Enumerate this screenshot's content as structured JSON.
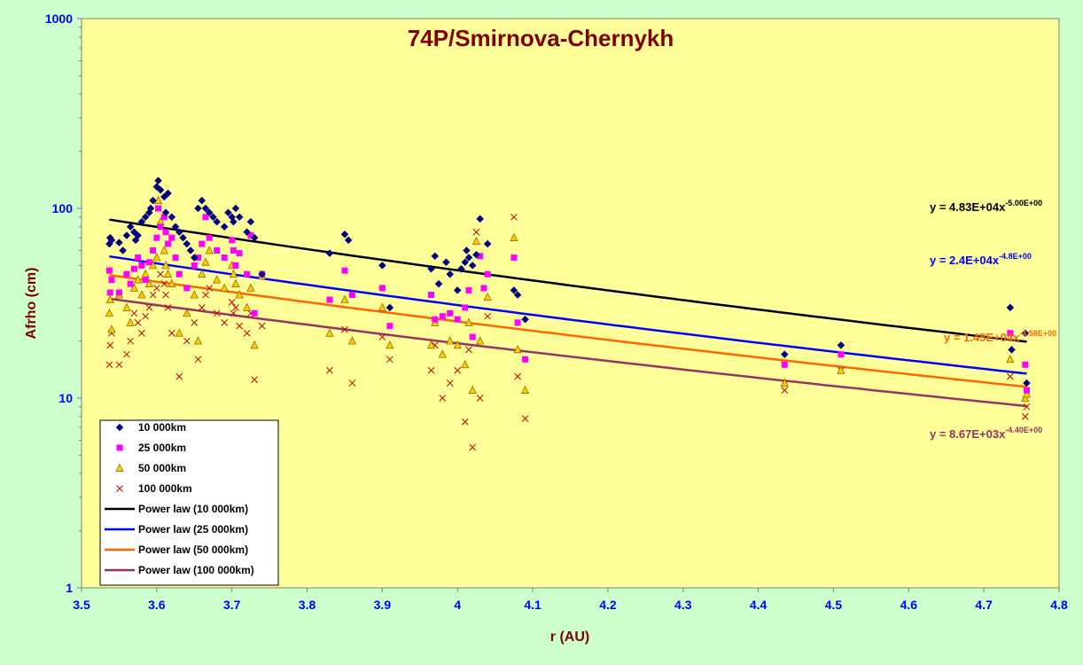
{
  "chart_data": {
    "type": "scatter",
    "title": "74P/Smirnova-Chernykh",
    "xlabel": "r (AU)",
    "ylabel": "Afrho (cm)",
    "xlim": [
      3.5,
      4.8
    ],
    "ylim": [
      1,
      1000
    ],
    "yscale": "log",
    "xticks": [
      "3.5",
      "3.6",
      "3.7",
      "3.8",
      "3.9",
      "4",
      "4.1",
      "4.2",
      "4.3",
      "4.4",
      "4.5",
      "4.6",
      "4.7",
      "4.8"
    ],
    "yticks": [
      "1",
      "10",
      "100",
      "1000"
    ],
    "grid": false,
    "legend_position": "bottom-left",
    "colors": {
      "plot_bg": "#FFFF99",
      "outer_bg": "#CCFFCC",
      "s10000": "#000080",
      "s25000": "#FF00FF",
      "s50000": "#FFCC00",
      "s100000": "#C00000",
      "fit10000": "#000000",
      "fit25000": "#0000FF",
      "fit50000": "#FF6600",
      "fit100000": "#993366"
    },
    "series": [
      {
        "name": "10 000km",
        "marker": "diamond",
        "points": [
          [
            3.537,
            65
          ],
          [
            3.538,
            70
          ],
          [
            3.54,
            68
          ],
          [
            3.55,
            66
          ],
          [
            3.555,
            60
          ],
          [
            3.56,
            72
          ],
          [
            3.565,
            80
          ],
          [
            3.57,
            75
          ],
          [
            3.572,
            68
          ],
          [
            3.575,
            72
          ],
          [
            3.58,
            85
          ],
          [
            3.585,
            90
          ],
          [
            3.59,
            95
          ],
          [
            3.592,
            100
          ],
          [
            3.595,
            110
          ],
          [
            3.6,
            130
          ],
          [
            3.602,
            140
          ],
          [
            3.605,
            125
          ],
          [
            3.61,
            115
          ],
          [
            3.612,
            95
          ],
          [
            3.615,
            120
          ],
          [
            3.62,
            90
          ],
          [
            3.625,
            80
          ],
          [
            3.63,
            75
          ],
          [
            3.635,
            70
          ],
          [
            3.64,
            65
          ],
          [
            3.645,
            60
          ],
          [
            3.65,
            55
          ],
          [
            3.655,
            100
          ],
          [
            3.66,
            110
          ],
          [
            3.665,
            100
          ],
          [
            3.67,
            95
          ],
          [
            3.675,
            90
          ],
          [
            3.68,
            85
          ],
          [
            3.69,
            80
          ],
          [
            3.695,
            95
          ],
          [
            3.7,
            90
          ],
          [
            3.702,
            85
          ],
          [
            3.705,
            100
          ],
          [
            3.71,
            90
          ],
          [
            3.72,
            75
          ],
          [
            3.725,
            85
          ],
          [
            3.73,
            70
          ],
          [
            3.74,
            45
          ],
          [
            3.83,
            58
          ],
          [
            3.85,
            73
          ],
          [
            3.855,
            68
          ],
          [
            3.9,
            50
          ],
          [
            3.91,
            30
          ],
          [
            3.965,
            48
          ],
          [
            3.97,
            56
          ],
          [
            3.975,
            40
          ],
          [
            3.985,
            52
          ],
          [
            3.99,
            45
          ],
          [
            4.0,
            37
          ],
          [
            4.005,
            48
          ],
          [
            4.01,
            52
          ],
          [
            4.012,
            60
          ],
          [
            4.015,
            55
          ],
          [
            4.02,
            50
          ],
          [
            4.025,
            57
          ],
          [
            4.03,
            88
          ],
          [
            4.04,
            65
          ],
          [
            4.075,
            37
          ],
          [
            4.08,
            35
          ],
          [
            4.09,
            26
          ],
          [
            4.435,
            17
          ],
          [
            4.51,
            19
          ],
          [
            4.735,
            30
          ],
          [
            4.737,
            18
          ],
          [
            4.755,
            22
          ],
          [
            4.757,
            12
          ]
        ]
      },
      {
        "name": "25 000km",
        "marker": "square",
        "points": [
          [
            3.537,
            47
          ],
          [
            3.538,
            36
          ],
          [
            3.54,
            42
          ],
          [
            3.55,
            36
          ],
          [
            3.56,
            45
          ],
          [
            3.565,
            40
          ],
          [
            3.57,
            48
          ],
          [
            3.575,
            55
          ],
          [
            3.58,
            50
          ],
          [
            3.585,
            42
          ],
          [
            3.59,
            52
          ],
          [
            3.595,
            60
          ],
          [
            3.6,
            70
          ],
          [
            3.602,
            100
          ],
          [
            3.605,
            80
          ],
          [
            3.61,
            90
          ],
          [
            3.612,
            75
          ],
          [
            3.615,
            65
          ],
          [
            3.62,
            70
          ],
          [
            3.625,
            55
          ],
          [
            3.63,
            45
          ],
          [
            3.64,
            38
          ],
          [
            3.65,
            50
          ],
          [
            3.655,
            55
          ],
          [
            3.66,
            65
          ],
          [
            3.665,
            90
          ],
          [
            3.67,
            70
          ],
          [
            3.68,
            60
          ],
          [
            3.69,
            55
          ],
          [
            3.7,
            68
          ],
          [
            3.702,
            60
          ],
          [
            3.705,
            50
          ],
          [
            3.71,
            58
          ],
          [
            3.72,
            45
          ],
          [
            3.725,
            72
          ],
          [
            3.73,
            28
          ],
          [
            3.74,
            45
          ],
          [
            3.83,
            33
          ],
          [
            3.85,
            47
          ],
          [
            3.86,
            35
          ],
          [
            3.9,
            38
          ],
          [
            3.91,
            24
          ],
          [
            3.965,
            35
          ],
          [
            3.97,
            26
          ],
          [
            3.98,
            27
          ],
          [
            3.99,
            28
          ],
          [
            4.0,
            26
          ],
          [
            4.01,
            30
          ],
          [
            4.015,
            37
          ],
          [
            4.02,
            21
          ],
          [
            4.03,
            56
          ],
          [
            4.035,
            38
          ],
          [
            4.04,
            45
          ],
          [
            4.075,
            55
          ],
          [
            4.08,
            25
          ],
          [
            4.09,
            16
          ],
          [
            4.435,
            15
          ],
          [
            4.51,
            17
          ],
          [
            4.735,
            22
          ],
          [
            4.755,
            15
          ],
          [
            4.757,
            11
          ]
        ]
      },
      {
        "name": "50 000km",
        "marker": "triangle",
        "points": [
          [
            3.537,
            28
          ],
          [
            3.538,
            33
          ],
          [
            3.54,
            23
          ],
          [
            3.55,
            35
          ],
          [
            3.56,
            30
          ],
          [
            3.565,
            25
          ],
          [
            3.57,
            38
          ],
          [
            3.575,
            42
          ],
          [
            3.58,
            35
          ],
          [
            3.585,
            45
          ],
          [
            3.59,
            40
          ],
          [
            3.595,
            50
          ],
          [
            3.6,
            55
          ],
          [
            3.602,
            110
          ],
          [
            3.605,
            85
          ],
          [
            3.61,
            60
          ],
          [
            3.612,
            50
          ],
          [
            3.615,
            45
          ],
          [
            3.62,
            40
          ],
          [
            3.63,
            22
          ],
          [
            3.64,
            28
          ],
          [
            3.65,
            35
          ],
          [
            3.655,
            20
          ],
          [
            3.66,
            45
          ],
          [
            3.665,
            52
          ],
          [
            3.67,
            60
          ],
          [
            3.68,
            42
          ],
          [
            3.69,
            38
          ],
          [
            3.7,
            50
          ],
          [
            3.702,
            45
          ],
          [
            3.705,
            40
          ],
          [
            3.71,
            35
          ],
          [
            3.72,
            30
          ],
          [
            3.725,
            38
          ],
          [
            3.73,
            19
          ],
          [
            3.74,
            44
          ],
          [
            3.83,
            22
          ],
          [
            3.85,
            33
          ],
          [
            3.86,
            20
          ],
          [
            3.9,
            30
          ],
          [
            3.91,
            19
          ],
          [
            3.965,
            19
          ],
          [
            3.97,
            25
          ],
          [
            3.98,
            17
          ],
          [
            3.99,
            20
          ],
          [
            4.0,
            19
          ],
          [
            4.01,
            15
          ],
          [
            4.015,
            25
          ],
          [
            4.02,
            11
          ],
          [
            4.025,
            67
          ],
          [
            4.03,
            20
          ],
          [
            4.04,
            34
          ],
          [
            4.075,
            70
          ],
          [
            4.08,
            18
          ],
          [
            4.09,
            11
          ],
          [
            4.435,
            12
          ],
          [
            4.51,
            14
          ],
          [
            4.735,
            16
          ],
          [
            4.755,
            10
          ],
          [
            4.757,
            10.5
          ]
        ]
      },
      {
        "name": "100 000km",
        "marker": "cross",
        "points": [
          [
            3.537,
            15
          ],
          [
            3.538,
            19
          ],
          [
            3.54,
            22
          ],
          [
            3.55,
            15
          ],
          [
            3.56,
            17
          ],
          [
            3.565,
            20
          ],
          [
            3.57,
            28
          ],
          [
            3.575,
            25
          ],
          [
            3.58,
            22
          ],
          [
            3.585,
            27
          ],
          [
            3.59,
            30
          ],
          [
            3.595,
            35
          ],
          [
            3.6,
            38
          ],
          [
            3.602,
            100
          ],
          [
            3.605,
            45
          ],
          [
            3.61,
            40
          ],
          [
            3.612,
            35
          ],
          [
            3.615,
            30
          ],
          [
            3.62,
            22
          ],
          [
            3.63,
            13
          ],
          [
            3.64,
            20
          ],
          [
            3.65,
            25
          ],
          [
            3.655,
            16
          ],
          [
            3.66,
            30
          ],
          [
            3.665,
            35
          ],
          [
            3.67,
            38
          ],
          [
            3.68,
            28
          ],
          [
            3.69,
            25
          ],
          [
            3.7,
            32
          ],
          [
            3.702,
            28
          ],
          [
            3.705,
            30
          ],
          [
            3.71,
            24
          ],
          [
            3.72,
            22
          ],
          [
            3.725,
            28
          ],
          [
            3.73,
            12.5
          ],
          [
            3.74,
            24
          ],
          [
            3.83,
            14
          ],
          [
            3.85,
            23
          ],
          [
            3.86,
            12
          ],
          [
            3.9,
            21
          ],
          [
            3.91,
            16
          ],
          [
            3.965,
            14
          ],
          [
            3.97,
            19
          ],
          [
            3.98,
            10
          ],
          [
            3.99,
            12
          ],
          [
            4.0,
            14
          ],
          [
            4.01,
            7.5
          ],
          [
            4.015,
            18
          ],
          [
            4.02,
            5.5
          ],
          [
            4.025,
            75
          ],
          [
            4.03,
            10
          ],
          [
            4.04,
            27
          ],
          [
            4.075,
            90
          ],
          [
            4.08,
            13
          ],
          [
            4.09,
            7.8
          ],
          [
            4.435,
            11
          ],
          [
            4.51,
            14
          ],
          [
            4.735,
            13
          ],
          [
            4.755,
            8
          ],
          [
            4.757,
            9
          ]
        ]
      }
    ],
    "fits": [
      {
        "name": "Power law (10 000km)",
        "A": 48300,
        "b": -5.0,
        "x_range": [
          3.537,
          4.757
        ],
        "color": "#000000",
        "eq_main": "y = 4.83E+04x",
        "eq_exp": "-5.00E+00",
        "eq_color": "#000000"
      },
      {
        "name": "Power law (25 000km)",
        "A": 24000,
        "b": -4.8,
        "x_range": [
          3.537,
          4.757
        ],
        "color": "#0000FF",
        "eq_main": "y = 2.4E+04x",
        "eq_exp": "-4.8E+00",
        "eq_color": "#0000FF"
      },
      {
        "name": "Power law (50 000km)",
        "A": 14500,
        "b": -4.58,
        "x_range": [
          3.537,
          4.757
        ],
        "color": "#FF6600",
        "eq_main": "y = 1.45E+04x",
        "eq_exp": "-4.58E+00",
        "eq_color": "#FF6600"
      },
      {
        "name": "Power law (100 000km)",
        "A": 8670,
        "b": -4.4,
        "x_range": [
          3.537,
          4.757
        ],
        "color": "#993366",
        "eq_main": "y = 8.67E+03x",
        "eq_exp": "-4.40E+00",
        "eq_color": "#993366"
      }
    ]
  }
}
